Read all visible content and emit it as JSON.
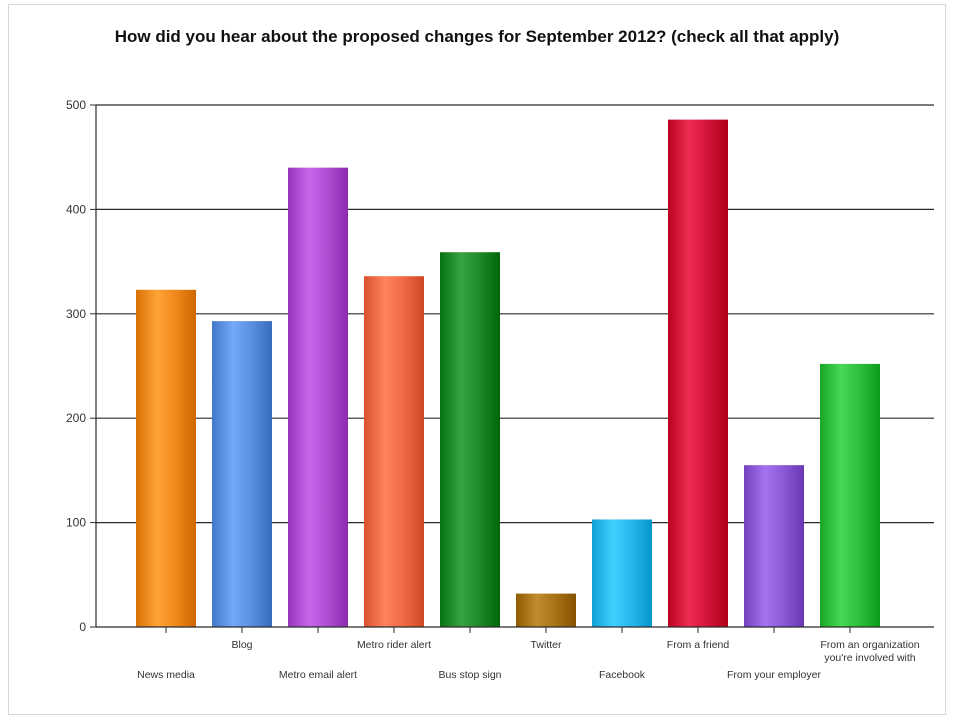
{
  "chart_data": {
    "type": "bar",
    "title": "How did you hear about the proposed changes for September 2012? (check all that apply)",
    "xlabel": "",
    "ylabel": "",
    "ylim": [
      0,
      500
    ],
    "yticks": [
      0,
      100,
      200,
      300,
      400,
      500
    ],
    "grid": true,
    "legend": "none",
    "categories": [
      "News media",
      "Blog",
      "Metro email alert",
      "Metro rider alert",
      "Bus stop sign",
      "Twitter",
      "Facebook",
      "From a friend",
      "From your employer",
      "From an organization you're involved with"
    ],
    "values": [
      323,
      293,
      440,
      336,
      359,
      32,
      103,
      486,
      155,
      252
    ],
    "colors": [
      "#f08a1c",
      "#5b8fe0",
      "#b04ed3",
      "#f26a45",
      "#1f8a2a",
      "#a87316",
      "#27b8ee",
      "#d4143a",
      "#8c5ad6",
      "#2fbf3d"
    ],
    "label_rows": [
      1,
      0,
      1,
      0,
      1,
      0,
      1,
      0,
      1,
      0
    ]
  }
}
